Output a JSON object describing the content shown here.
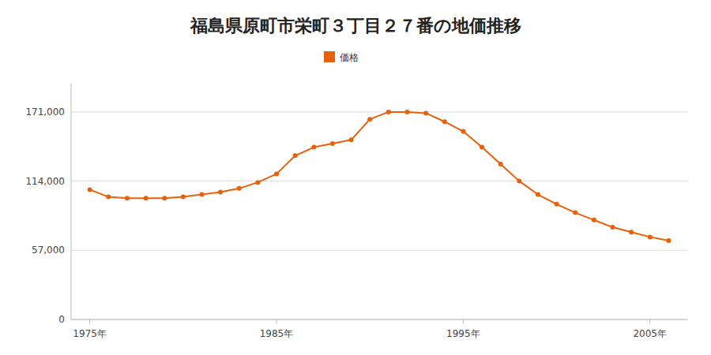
{
  "chart_data": {
    "type": "line",
    "title": "福島県原町市栄町３丁目２７番の地価推移",
    "x": [
      1975,
      1976,
      1977,
      1978,
      1979,
      1980,
      1981,
      1982,
      1983,
      1984,
      1985,
      1986,
      1987,
      1988,
      1989,
      1990,
      1991,
      1992,
      1993,
      1994,
      1995,
      1996,
      1997,
      1998,
      1999,
      2000,
      2001,
      2002,
      2003,
      2004,
      2005,
      2006
    ],
    "series": [
      {
        "name": "価格",
        "color": "#E8600A",
        "marker": "circle",
        "values": [
          107000,
          101000,
          100000,
          100000,
          100000,
          101000,
          103000,
          105000,
          108000,
          113000,
          120000,
          135000,
          142000,
          145000,
          148000,
          165000,
          171000,
          171000,
          170000,
          163000,
          155000,
          142000,
          128000,
          114000,
          103000,
          95000,
          88000,
          82000,
          76000,
          72000,
          68000,
          65000
        ]
      }
    ],
    "xlim": [
      1974,
      2007
    ],
    "xticks": [
      {
        "value": 1975,
        "label": "1975年"
      },
      {
        "value": 1985,
        "label": "1985年"
      },
      {
        "value": 1995,
        "label": "1995年"
      },
      {
        "value": 2005,
        "label": "2005年"
      }
    ],
    "ylim": [
      0,
      195000
    ],
    "yticks": [
      0,
      {
        "value": 57000,
        "label": "57,000"
      },
      {
        "value": 114000,
        "label": "114,000"
      },
      {
        "value": 171000,
        "label": "171,000"
      }
    ],
    "grid": true,
    "legend": "top"
  }
}
